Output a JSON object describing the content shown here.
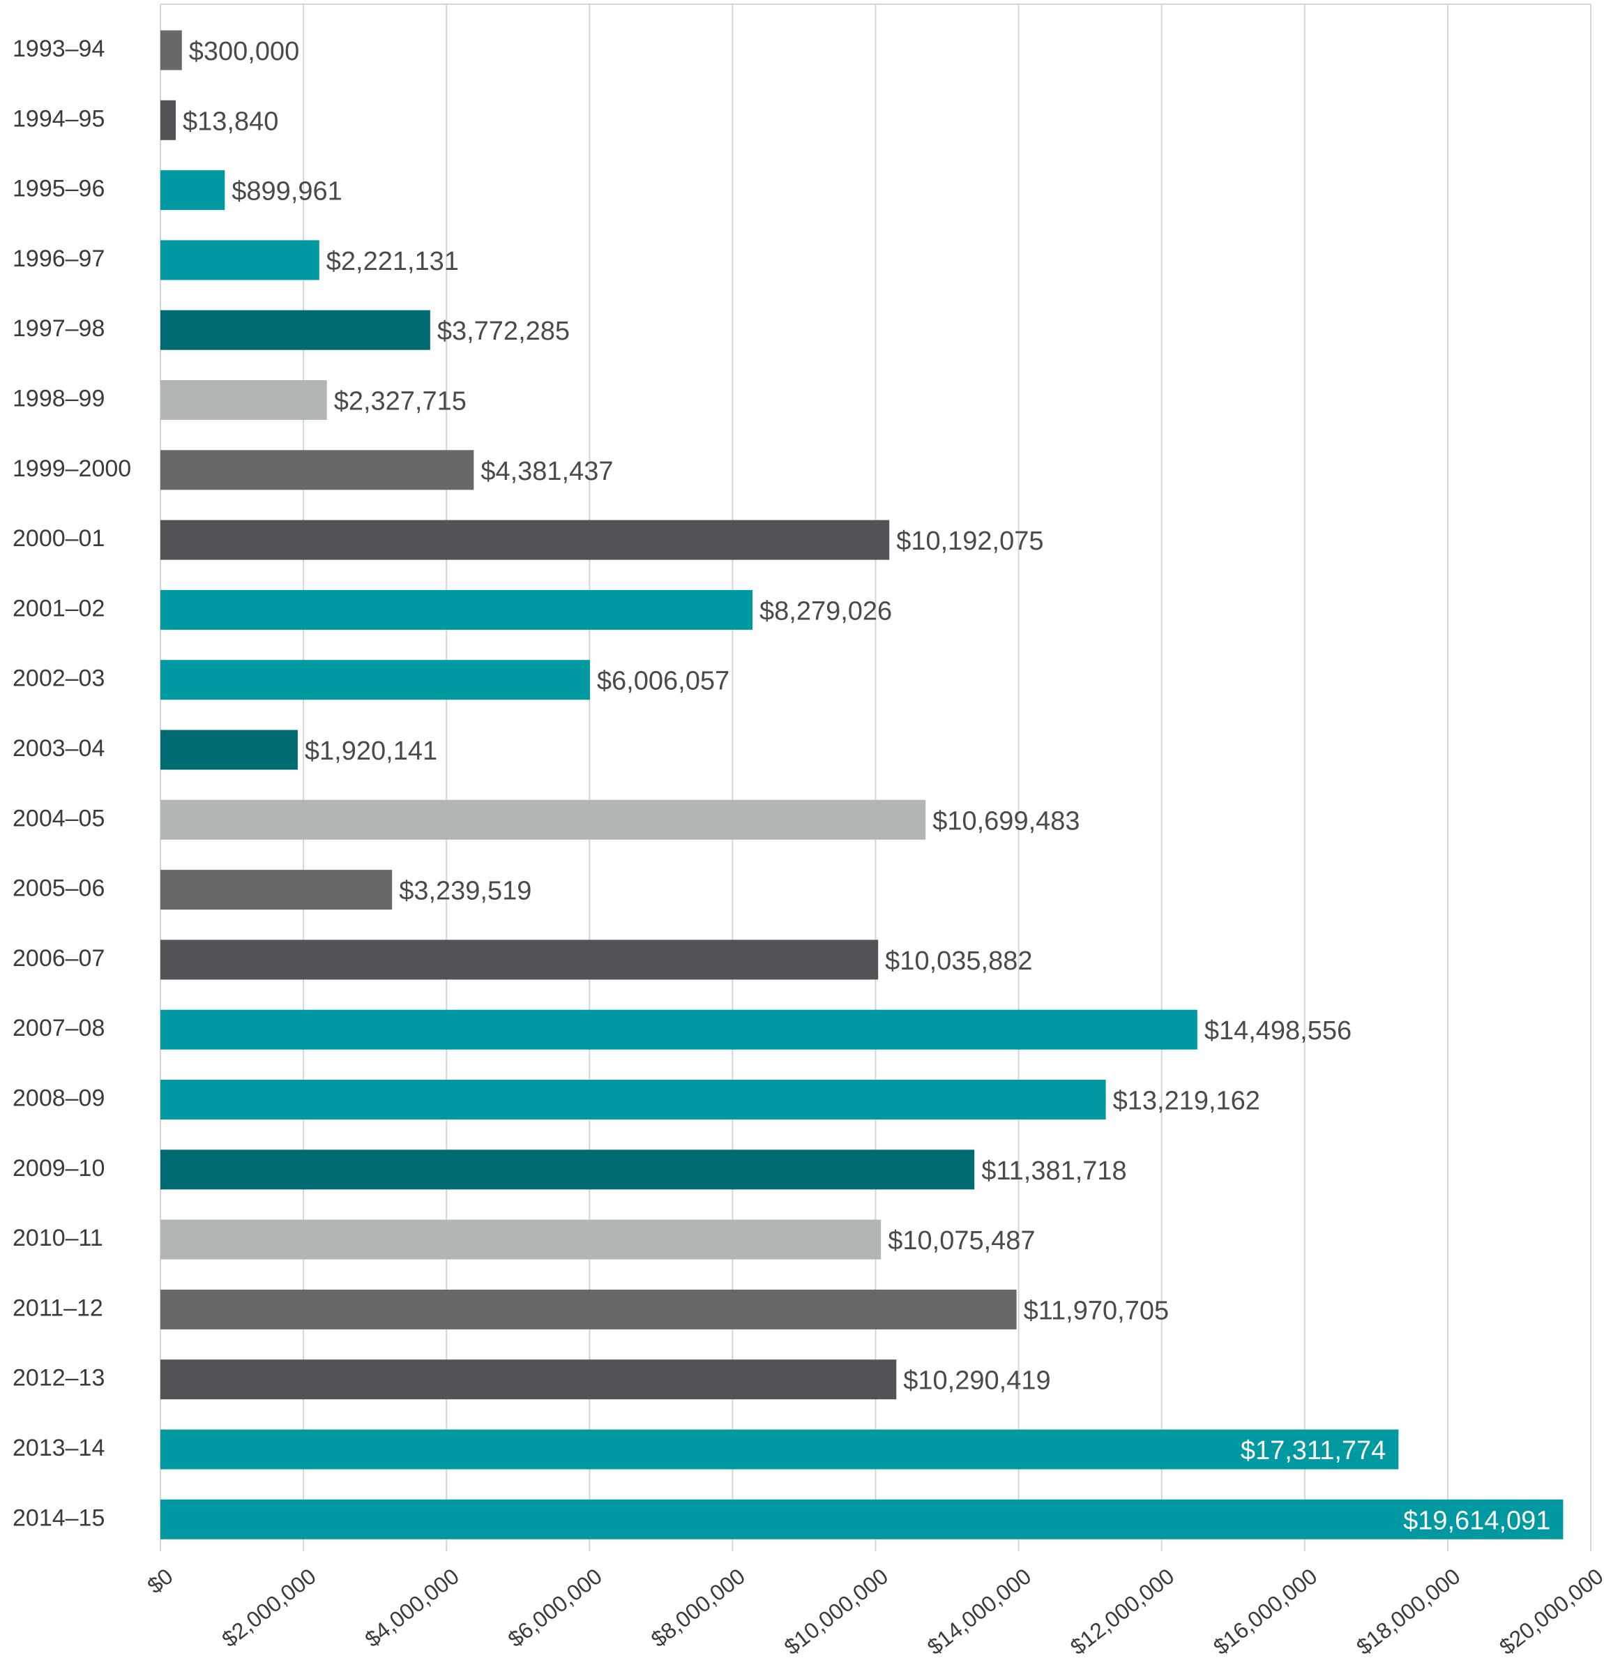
{
  "chart_data": {
    "type": "bar",
    "orientation": "horizontal",
    "title": "",
    "xlabel": "",
    "ylabel": "",
    "categories": [
      "1993–94",
      "1994–95",
      "1995–96",
      "1996–97",
      "1997–98",
      "1998–99",
      "1999–2000",
      "2000–01",
      "2001–02",
      "2002–03",
      "2003–04",
      "2004–05",
      "2005–06",
      "2006–07",
      "2007–08",
      "2008–09",
      "2009–10",
      "2010–11",
      "2011–12",
      "2012–13",
      "2013–14",
      "2014–15"
    ],
    "values": [
      300000,
      13840,
      899961,
      2221131,
      3772285,
      2327715,
      4381437,
      10192075,
      8279026,
      6006057,
      1920141,
      10699483,
      3239519,
      10035882,
      14498556,
      13219162,
      11381718,
      10075487,
      11970705,
      10290419,
      17311774,
      19614091
    ],
    "value_labels": [
      "$300,000",
      "$13,840",
      "$899,961",
      "$2,221,131",
      "$3,772,285",
      "$2,327,715",
      "$4,381,437",
      "$10,192,075",
      "$8,279,026",
      "$6,006,057",
      "$1,920,141",
      "$10,699,483",
      "$3,239,519",
      "$10,035,882",
      "$14,498,556",
      "$13,219,162",
      "$11,381,718",
      "$10,075,487",
      "$11,970,705",
      "$10,290,419",
      "$17,311,774",
      "$19,614,091"
    ],
    "bar_colors": [
      "#67686a",
      "#525356",
      "#0099a1",
      "#0099a1",
      "#006b73",
      "#b2b5b6",
      "#67686a",
      "#525356",
      "#0099a1",
      "#0099a1",
      "#006b73",
      "#b2b5b6",
      "#67686a",
      "#525356",
      "#0099a1",
      "#0099a1",
      "#006b73",
      "#b2b5b6",
      "#67686a",
      "#525356",
      "#0099a1",
      "#0099a1"
    ],
    "x_ticks": [
      "$0",
      "$2,000,000",
      "$4,000,000",
      "$6,000,000",
      "$8,000,000",
      "$10,000,000",
      "$14,000,000",
      "$12,000,000",
      "$16,000,000",
      "$18,000,000",
      "$20,000,000"
    ],
    "xlim": [
      0,
      20000000
    ],
    "grid": true,
    "legend": "none"
  }
}
